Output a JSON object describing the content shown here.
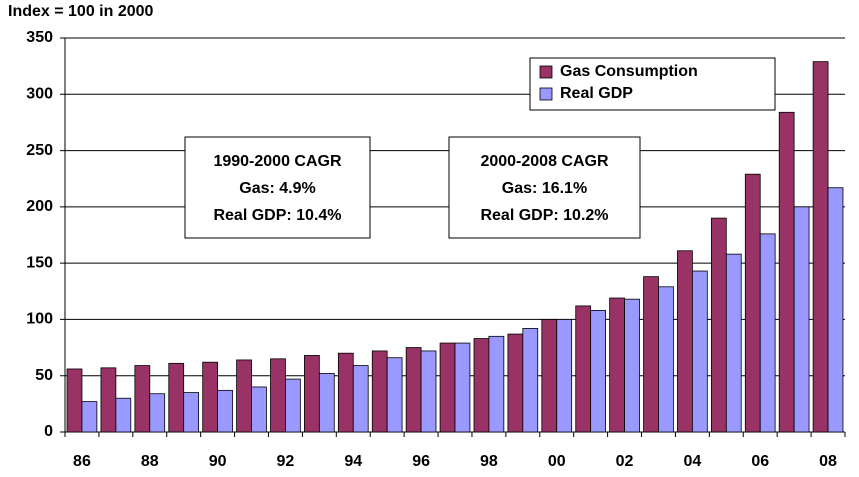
{
  "chart_data": {
    "type": "bar",
    "title": "Index = 100 in 2000",
    "categories": [
      "86",
      null,
      "88",
      null,
      "90",
      null,
      "92",
      null,
      "94",
      null,
      "96",
      null,
      "98",
      null,
      "00",
      null,
      "02",
      null,
      "04",
      null,
      "06",
      null,
      "08"
    ],
    "series": [
      {
        "name": "Gas Consumption",
        "color": "#993366",
        "values": [
          56,
          57,
          59,
          61,
          62,
          64,
          65,
          68,
          70,
          72,
          75,
          79,
          83,
          87,
          100,
          112,
          119,
          138,
          161,
          190,
          229,
          284,
          329
        ]
      },
      {
        "name": "Real GDP",
        "color": "#9999ff",
        "values": [
          27,
          30,
          34,
          35,
          37,
          40,
          47,
          52,
          59,
          66,
          72,
          79,
          85,
          92,
          100,
          108,
          118,
          129,
          143,
          158,
          176,
          200,
          217
        ]
      }
    ],
    "ylim": [
      0,
      350
    ],
    "yticks": [
      0,
      50,
      100,
      150,
      200,
      250,
      300,
      350
    ],
    "grid": true,
    "legend": "upper right",
    "annotations": [
      [
        "1990-2000 CAGR",
        "Gas: 4.9%",
        "Real GDP: 10.4%"
      ],
      [
        "2000-2008 CAGR",
        "Gas: 16.1%",
        "Real GDP: 10.2%"
      ]
    ]
  }
}
